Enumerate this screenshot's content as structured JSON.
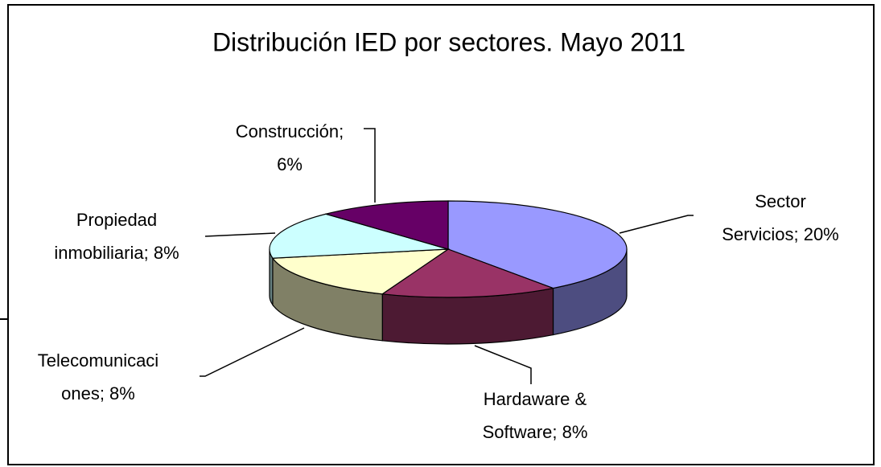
{
  "chart_data": {
    "type": "pie3d",
    "title": "Distribución IED por sectores. Mayo 2011",
    "values": [
      20,
      8,
      8,
      8,
      6
    ],
    "value_labels": [
      [
        "Sector",
        "Servicios; 20%"
      ],
      [
        "Hardaware &",
        "Software; 8%"
      ],
      [
        "Telecomunicaci",
        "ones; 8%"
      ],
      [
        "Propiedad",
        "inmobiliaria; 8%"
      ],
      [
        "Construcción;",
        "6%"
      ]
    ],
    "colors": [
      "#9999ff",
      "#993366",
      "#ffffcc",
      "#ccffff",
      "#660066"
    ],
    "side_colors": [
      "#4d4d80",
      "#4d1a33",
      "#808066",
      "#668080",
      "#330033"
    ]
  }
}
